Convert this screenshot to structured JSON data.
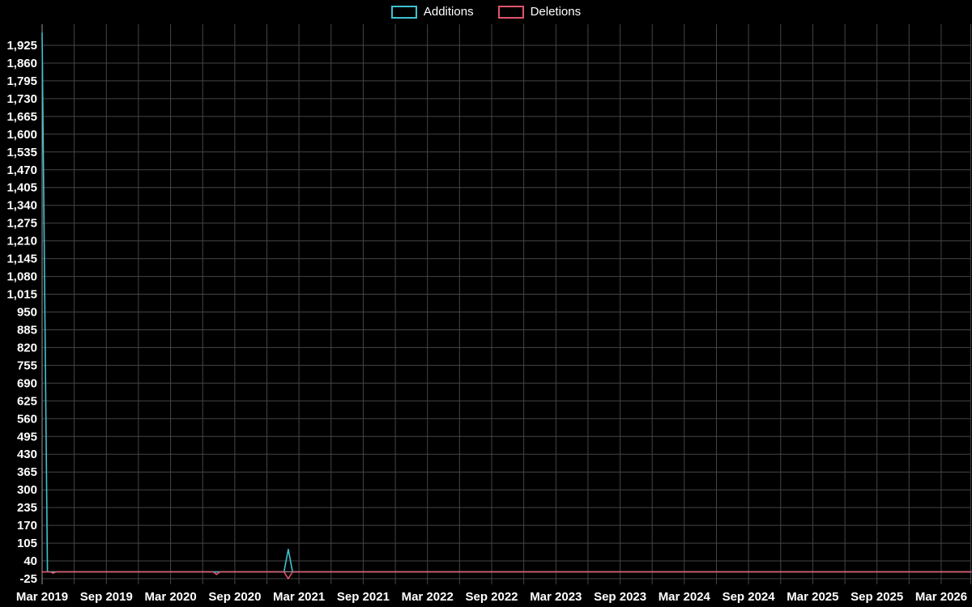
{
  "legend": {
    "items": [
      {
        "label": "Additions",
        "color": "#3fc1d1"
      },
      {
        "label": "Deletions",
        "color": "#e0556a"
      }
    ]
  },
  "chart_data": {
    "type": "line",
    "title": "",
    "background": "#000000",
    "text_color": "#ffffff",
    "grid": {
      "color": "#454545",
      "visible": true
    },
    "axis_color": "#9a9a9a",
    "zero_line": {
      "value": 0,
      "color": "#b3b3b3"
    },
    "legend_position": "top-center",
    "y_axis": {
      "min": -25,
      "max": 1925,
      "step": 65,
      "tick_labels": [
        "-25",
        "40",
        "105",
        "170",
        "235",
        "300",
        "365",
        "430",
        "495",
        "560",
        "625",
        "690",
        "755",
        "820",
        "885",
        "950",
        "1,015",
        "1,080",
        "1,145",
        "1,210",
        "1,275",
        "1,340",
        "1,405",
        "1,470",
        "1,535",
        "1,600",
        "1,665",
        "1,730",
        "1,795",
        "1,860",
        "1,925"
      ]
    },
    "x_axis": {
      "tick_labels": [
        "Mar 2019",
        "Sep 2019",
        "Mar 2020",
        "Sep 2020",
        "Mar 2021",
        "Sep 2021",
        "Mar 2022",
        "Sep 2022",
        "Mar 2023",
        "Sep 2023",
        "Mar 2024",
        "Sep 2024",
        "Mar 2025",
        "Sep 2025",
        "Mar 2026"
      ],
      "months_between_labels": 6,
      "gridline_every_months": 3,
      "total_months": 84
    },
    "series": [
      {
        "name": "Additions",
        "color": "#3fc1d1",
        "points": [
          [
            0,
            1970
          ],
          [
            0.5,
            0
          ],
          [
            1,
            0
          ],
          [
            16.3,
            0
          ],
          [
            22.6,
            0
          ],
          [
            23,
            82
          ],
          [
            23.4,
            0
          ],
          [
            87,
            0
          ]
        ]
      },
      {
        "name": "Deletions",
        "color": "#e0556a",
        "points": [
          [
            0,
            0
          ],
          [
            0.8,
            0
          ],
          [
            1,
            -5
          ],
          [
            1.3,
            0
          ],
          [
            16,
            0
          ],
          [
            16.3,
            -10
          ],
          [
            16.6,
            0
          ],
          [
            22.6,
            0
          ],
          [
            23,
            -25
          ],
          [
            23.4,
            0
          ],
          [
            87,
            0
          ]
        ]
      }
    ]
  }
}
